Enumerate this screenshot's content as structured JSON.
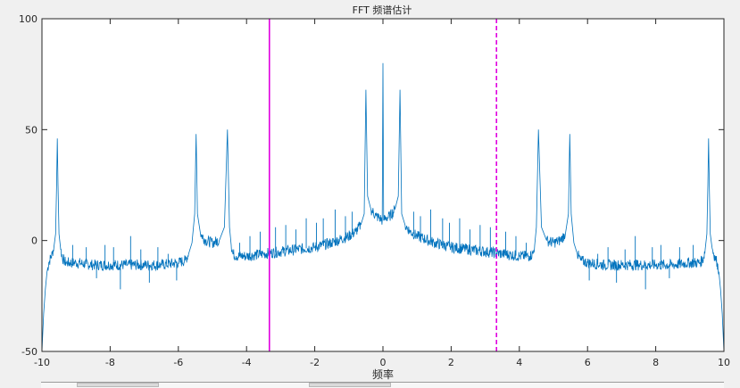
{
  "chart_data": {
    "type": "line",
    "title": "FFT 频谱估计",
    "xlabel": "频率",
    "ylabel": "",
    "xlim": [
      -10,
      10
    ],
    "ylim": [
      -50,
      100
    ],
    "xticks": [
      -10,
      -8,
      -6,
      -4,
      -2,
      0,
      2,
      4,
      6,
      8,
      10
    ],
    "yticks": [
      -50,
      0,
      50,
      100
    ],
    "grid": false,
    "series": [
      {
        "color": "#0072BD",
        "points": [
          [
            -10.0,
            -50
          ],
          [
            -9.95,
            -33
          ],
          [
            -9.9,
            -22
          ],
          [
            -9.85,
            -14
          ],
          [
            -9.8,
            -10
          ],
          [
            -9.75,
            -8
          ],
          [
            -9.7,
            -6
          ],
          [
            -9.65,
            -3
          ],
          [
            -9.6,
            3
          ],
          [
            -9.57,
            25
          ],
          [
            -9.55,
            46
          ],
          [
            -9.53,
            25
          ],
          [
            -9.5,
            3
          ],
          [
            -9.45,
            -4
          ],
          [
            -9.4,
            -8
          ],
          [
            -9.35,
            -9
          ],
          [
            -9.3,
            -10
          ],
          [
            -9.0,
            -10
          ],
          [
            -8.5,
            -11
          ],
          [
            -8.0,
            -11
          ],
          [
            -7.5,
            -11
          ],
          [
            -7.0,
            -11
          ],
          [
            -6.5,
            -11
          ],
          [
            -6.0,
            -10
          ],
          [
            -5.8,
            -9
          ],
          [
            -5.7,
            -6
          ],
          [
            -5.6,
            -1
          ],
          [
            -5.52,
            12
          ],
          [
            -5.48,
            48
          ],
          [
            -5.44,
            12
          ],
          [
            -5.35,
            3
          ],
          [
            -5.2,
            0
          ],
          [
            -5.0,
            -1
          ],
          [
            -4.8,
            0
          ],
          [
            -4.65,
            6
          ],
          [
            -4.56,
            50
          ],
          [
            -4.5,
            6
          ],
          [
            -4.45,
            -2
          ],
          [
            -4.4,
            -6
          ],
          [
            -4.3,
            -7
          ],
          [
            -4.0,
            -7
          ],
          [
            -3.5,
            -6
          ],
          [
            -3.0,
            -5
          ],
          [
            -2.5,
            -4
          ],
          [
            -2.0,
            -3
          ],
          [
            -1.5,
            -1
          ],
          [
            -1.0,
            2
          ],
          [
            -0.8,
            4
          ],
          [
            -0.65,
            7
          ],
          [
            -0.55,
            12
          ],
          [
            -0.5,
            68
          ],
          [
            -0.45,
            20
          ],
          [
            -0.35,
            14
          ],
          [
            -0.2,
            11
          ],
          [
            -0.08,
            10
          ],
          [
            -0.02,
            9
          ],
          [
            0.0,
            80
          ],
          [
            0.02,
            9
          ],
          [
            0.08,
            10
          ],
          [
            0.2,
            11
          ],
          [
            0.35,
            14
          ],
          [
            0.45,
            20
          ],
          [
            0.5,
            68
          ],
          [
            0.55,
            12
          ],
          [
            0.65,
            7
          ],
          [
            0.8,
            4
          ],
          [
            1.0,
            2
          ],
          [
            1.5,
            -1
          ],
          [
            2.0,
            -3
          ],
          [
            2.5,
            -4
          ],
          [
            3.0,
            -5
          ],
          [
            3.5,
            -6
          ],
          [
            4.0,
            -7
          ],
          [
            4.3,
            -7
          ],
          [
            4.4,
            -6
          ],
          [
            4.45,
            -2
          ],
          [
            4.5,
            6
          ],
          [
            4.56,
            50
          ],
          [
            4.65,
            6
          ],
          [
            4.8,
            0
          ],
          [
            5.0,
            -1
          ],
          [
            5.2,
            0
          ],
          [
            5.35,
            3
          ],
          [
            5.44,
            12
          ],
          [
            5.48,
            48
          ],
          [
            5.52,
            12
          ],
          [
            5.6,
            -1
          ],
          [
            5.7,
            -6
          ],
          [
            5.8,
            -9
          ],
          [
            6.0,
            -10
          ],
          [
            6.5,
            -11
          ],
          [
            7.0,
            -11
          ],
          [
            7.5,
            -11
          ],
          [
            8.0,
            -11
          ],
          [
            8.5,
            -11
          ],
          [
            9.0,
            -10
          ],
          [
            9.3,
            -10
          ],
          [
            9.35,
            -9
          ],
          [
            9.4,
            -8
          ],
          [
            9.45,
            -4
          ],
          [
            9.5,
            3
          ],
          [
            9.53,
            25
          ],
          [
            9.55,
            46
          ],
          [
            9.57,
            25
          ],
          [
            9.6,
            3
          ],
          [
            9.65,
            -3
          ],
          [
            9.7,
            -6
          ],
          [
            9.75,
            -8
          ],
          [
            9.8,
            -10
          ],
          [
            9.85,
            -14
          ],
          [
            9.9,
            -22
          ],
          [
            9.95,
            -33
          ],
          [
            10.0,
            -50
          ]
        ]
      }
    ],
    "spikes": [
      [
        -9.1,
        -2
      ],
      [
        -8.7,
        -3
      ],
      [
        -8.4,
        -17
      ],
      [
        -8.15,
        -2
      ],
      [
        -7.9,
        -3
      ],
      [
        -7.7,
        -22
      ],
      [
        -7.4,
        2
      ],
      [
        -7.1,
        -4
      ],
      [
        -6.85,
        -19
      ],
      [
        -6.6,
        -3
      ],
      [
        -6.3,
        -6
      ],
      [
        -6.05,
        -18
      ],
      [
        -4.2,
        -1
      ],
      [
        -3.9,
        2
      ],
      [
        -3.6,
        4
      ],
      [
        -3.15,
        6
      ],
      [
        -2.85,
        7
      ],
      [
        -2.55,
        5
      ],
      [
        -2.25,
        10
      ],
      [
        -1.95,
        8
      ],
      [
        -1.75,
        10
      ],
      [
        -1.4,
        14
      ],
      [
        -1.1,
        11
      ],
      [
        -0.9,
        13
      ],
      [
        0.9,
        13
      ],
      [
        1.1,
        11
      ],
      [
        1.4,
        14
      ],
      [
        1.75,
        10
      ],
      [
        1.95,
        8
      ],
      [
        2.25,
        10
      ],
      [
        2.55,
        5
      ],
      [
        2.85,
        7
      ],
      [
        3.15,
        6
      ],
      [
        3.6,
        4
      ],
      [
        3.9,
        2
      ],
      [
        4.2,
        -1
      ],
      [
        6.05,
        -18
      ],
      [
        6.3,
        -6
      ],
      [
        6.6,
        -3
      ],
      [
        6.85,
        -19
      ],
      [
        7.1,
        -4
      ],
      [
        7.4,
        2
      ],
      [
        7.7,
        -22
      ],
      [
        7.9,
        -3
      ],
      [
        8.15,
        -2
      ],
      [
        8.4,
        -17
      ],
      [
        8.7,
        -3
      ],
      [
        9.1,
        -2
      ]
    ],
    "markers": [
      {
        "x": -3.33,
        "style": "solid",
        "color": "#E000E0"
      },
      {
        "x": 3.33,
        "style": "dashed",
        "color": "#E000E0"
      }
    ]
  }
}
